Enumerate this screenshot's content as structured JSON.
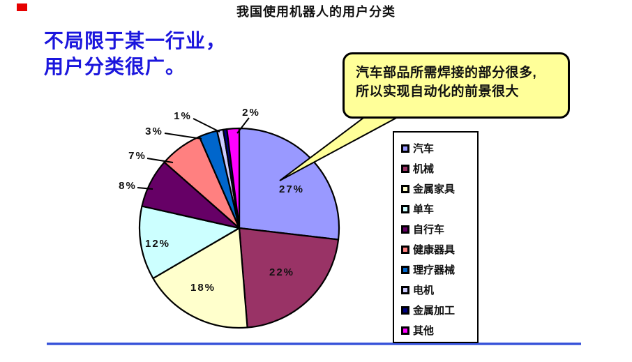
{
  "slide": {
    "title": "我国使用机器人的用户分类",
    "heading_line1": "不局限于某一行业，",
    "heading_line2": "用户分类很广。",
    "callout_line1": "汽车部品所需焊接的部分很多,",
    "callout_line2": "所以实现自动化的前景很大",
    "colors": {
      "heading_text": "#1b16dd",
      "callout_fill": "#ffff99",
      "divider": "#3752d9",
      "marker": "#e60000",
      "stroke": "#000000"
    }
  },
  "chart_data": {
    "type": "pie",
    "title": "我国使用机器人的用户分类",
    "direction": "clockwise",
    "start_angle": "12-o-clock",
    "legend_position": "right",
    "slices": [
      {
        "label": "汽车",
        "value": 27,
        "pct_label": "27%",
        "color": "#9999ff"
      },
      {
        "label": "机械",
        "value": 22,
        "pct_label": "22%",
        "color": "#993366"
      },
      {
        "label": "金属家具",
        "value": 18,
        "pct_label": "18%",
        "color": "#ffffcc"
      },
      {
        "label": "单车",
        "value": 12,
        "pct_label": "12%",
        "color": "#ccffff"
      },
      {
        "label": "自行车",
        "value": 8,
        "pct_label": "8%",
        "color": "#660066"
      },
      {
        "label": "健康器具",
        "value": 7,
        "pct_label": "7%",
        "color": "#ff8080"
      },
      {
        "label": "理疗器械",
        "value": 3,
        "pct_label": "3%",
        "color": "#0066cc"
      },
      {
        "label": "电机",
        "value": 1,
        "pct_label": "1%",
        "color": "#ccccff"
      },
      {
        "label": "金属加工",
        "value": 0.6,
        "pct_label": "",
        "color": "#000080"
      },
      {
        "label": "其他",
        "value": 2,
        "pct_label": "2%",
        "color": "#ff00ff"
      }
    ]
  }
}
